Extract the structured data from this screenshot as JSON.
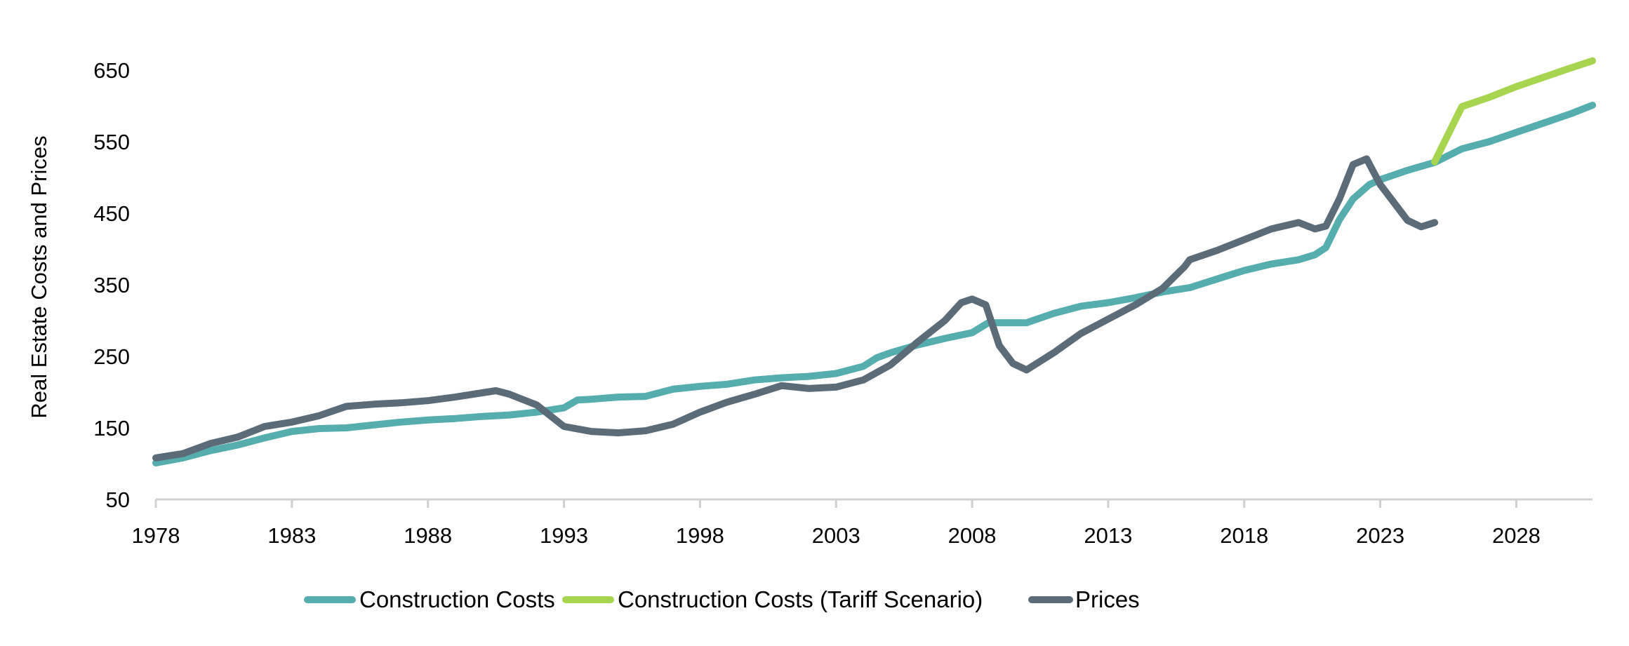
{
  "chart_data": {
    "type": "line",
    "title": "",
    "xlabel": "",
    "ylabel": "Real Estate Costs and Prices",
    "xlim": [
      1978,
      2030.8
    ],
    "ylim": [
      50,
      650
    ],
    "x_ticks": [
      "1978",
      "1983",
      "1988",
      "1993",
      "1998",
      "2003",
      "2008",
      "2013",
      "2018",
      "2023",
      "2028"
    ],
    "y_ticks": [
      "50",
      "150",
      "250",
      "350",
      "450",
      "550",
      "650"
    ],
    "grid": false,
    "legend_position": "bottom",
    "series": [
      {
        "name": "Construction Costs",
        "color": "#55ADAE",
        "x": [
          1978,
          1979,
          1980,
          1981,
          1982,
          1983,
          1984,
          1985,
          1986,
          1987,
          1988,
          1989,
          1990,
          1991,
          1992,
          1993,
          1993.5,
          1994,
          1995,
          1996,
          1997,
          1998,
          1999,
          2000,
          2001,
          2002,
          2003,
          2004,
          2004.5,
          2005,
          2006,
          2007,
          2008,
          2008.6,
          2009,
          2010,
          2011,
          2012,
          2013,
          2014,
          2015,
          2016,
          2017,
          2018,
          2019,
          2020,
          2020.6,
          2021,
          2021.5,
          2022,
          2022.6,
          2023,
          2024,
          2025,
          2026,
          2027,
          2028,
          2029,
          2030,
          2030.8
        ],
        "values": [
          101,
          108,
          118,
          126,
          136,
          145,
          149,
          150,
          154,
          158,
          161,
          163,
          166,
          168,
          172,
          178,
          189,
          190,
          193,
          194,
          204,
          208,
          211,
          217,
          220,
          222,
          226,
          236,
          248,
          255,
          266,
          275,
          283,
          297,
          297,
          297,
          310,
          320,
          325,
          332,
          340,
          346,
          358,
          370,
          379,
          385,
          392,
          402,
          441,
          470,
          490,
          497,
          510,
          521,
          540,
          550,
          563,
          576,
          589,
          601
        ]
      },
      {
        "name": "Construction Costs (Tariff Scenario)",
        "color": "#A8D550",
        "x": [
          2025,
          2026,
          2027,
          2028,
          2029,
          2030,
          2030.8
        ],
        "values": [
          522,
          599,
          612,
          627,
          640,
          653,
          663
        ]
      },
      {
        "name": "Prices",
        "color": "#5B6C78",
        "x": [
          1978,
          1979,
          1980,
          1981,
          1982,
          1983,
          1984,
          1985,
          1986,
          1987,
          1988,
          1989,
          1990,
          1990.5,
          1991,
          1992,
          1992.5,
          1993,
          1994,
          1995,
          1996,
          1997,
          1998,
          1999,
          2000,
          2001,
          2002,
          2003,
          2004,
          2005,
          2006,
          2007,
          2007.6,
          2008,
          2008.5,
          2009,
          2009.5,
          2010,
          2011,
          2012,
          2013,
          2014,
          2015,
          2015.8,
          2016,
          2017,
          2018,
          2019,
          2020,
          2020.6,
          2021,
          2021.5,
          2022,
          2022.5,
          2023,
          2023.6,
          2024,
          2024.5,
          2025
        ],
        "values": [
          108,
          114,
          128,
          137,
          152,
          158,
          167,
          180,
          183,
          185,
          188,
          193,
          199,
          202,
          197,
          182,
          167,
          152,
          145,
          143,
          146,
          155,
          172,
          186,
          197,
          209,
          205,
          207,
          217,
          238,
          270,
          300,
          325,
          330,
          322,
          265,
          240,
          231,
          255,
          282,
          302,
          322,
          345,
          375,
          385,
          398,
          413,
          428,
          437,
          428,
          432,
          470,
          518,
          526,
          490,
          460,
          440,
          431,
          437
        ]
      }
    ]
  }
}
